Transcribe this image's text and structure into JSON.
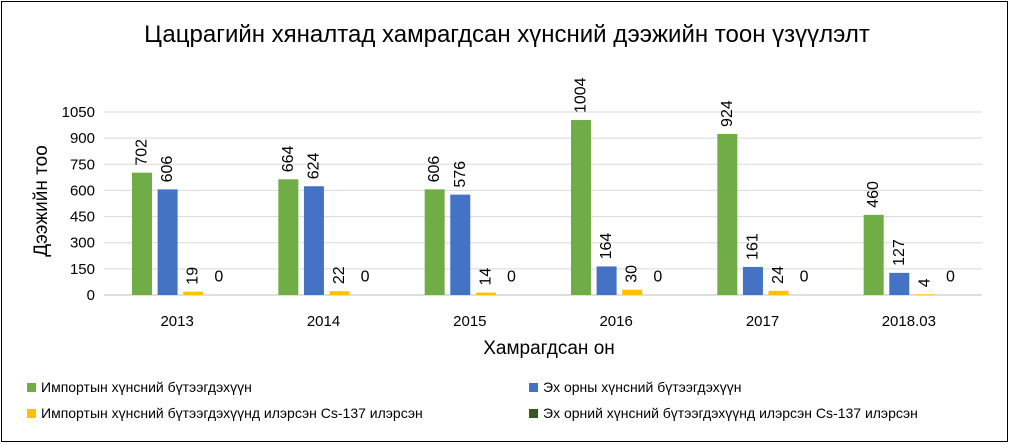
{
  "chart_data": {
    "type": "bar",
    "title": "Цацрагийн хяналтад хамрагдсан хүнсний дээжийн тоон үзүүлэлт",
    "xlabel": "Хамрагдсан он",
    "ylabel": "Дээжийн тоо",
    "categories": [
      "2013",
      "2014",
      "2015",
      "2016",
      "2017",
      "2018.03"
    ],
    "ylim": [
      0,
      1050
    ],
    "yticks": [
      "0",
      "150",
      "300",
      "450",
      "600",
      "750",
      "900",
      "1050"
    ],
    "grid": true,
    "legend_position": "bottom",
    "series": [
      {
        "name": "Импортын хүнсний бүтээгдэхүүн",
        "color": "#70ad47",
        "values": [
          702,
          664,
          606,
          1004,
          924,
          460
        ]
      },
      {
        "name": "Эх орны хүнсний бүтээгдэхүүн",
        "color": "#4472c4",
        "values": [
          606,
          624,
          576,
          164,
          161,
          127
        ]
      },
      {
        "name": "Импортын хүнсний бүтээгдэхүүнд илэрсэн Cs-137 илэрсэн",
        "color": "#ffc000",
        "values": [
          19,
          22,
          14,
          30,
          24,
          4
        ]
      },
      {
        "name": "Эх орний хүнсний бүтээгдэхүүнд илэрсэн Cs-137 илэрсэн",
        "color": "#375623",
        "values": [
          0,
          0,
          0,
          0,
          0,
          0
        ]
      }
    ]
  }
}
